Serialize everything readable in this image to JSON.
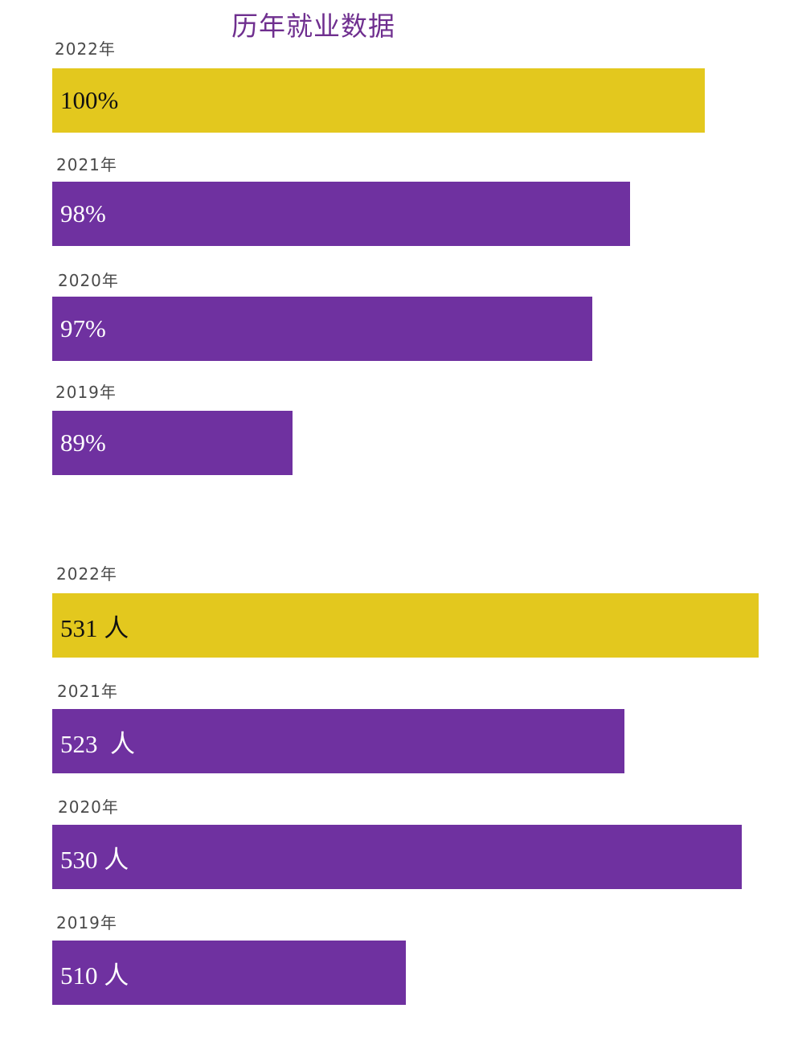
{
  "title": "历年就业数据",
  "colors": {
    "highlight": "#e3c81e",
    "normal": "#6f31a0",
    "title": "#6f2f8f",
    "label_dark": "#111111",
    "label_light": "#ffffff"
  },
  "chart_data": [
    {
      "type": "bar",
      "orientation": "horizontal",
      "categories": [
        "2022年",
        "2021年",
        "2020年",
        "2019年"
      ],
      "values": [
        100,
        98,
        97,
        89
      ],
      "data_labels": [
        "100%",
        "98%",
        "97%",
        "89%"
      ],
      "unit": "%",
      "highlight": [
        true,
        false,
        false,
        false
      ]
    },
    {
      "type": "bar",
      "orientation": "horizontal",
      "categories": [
        "2022年",
        "2021年",
        "2020年",
        "2019年"
      ],
      "values": [
        531,
        523,
        530,
        510
      ],
      "data_labels": [
        "531 人",
        "523  人",
        "530 人",
        "510 人"
      ],
      "unit": "人",
      "highlight": [
        true,
        false,
        false,
        false
      ]
    }
  ]
}
